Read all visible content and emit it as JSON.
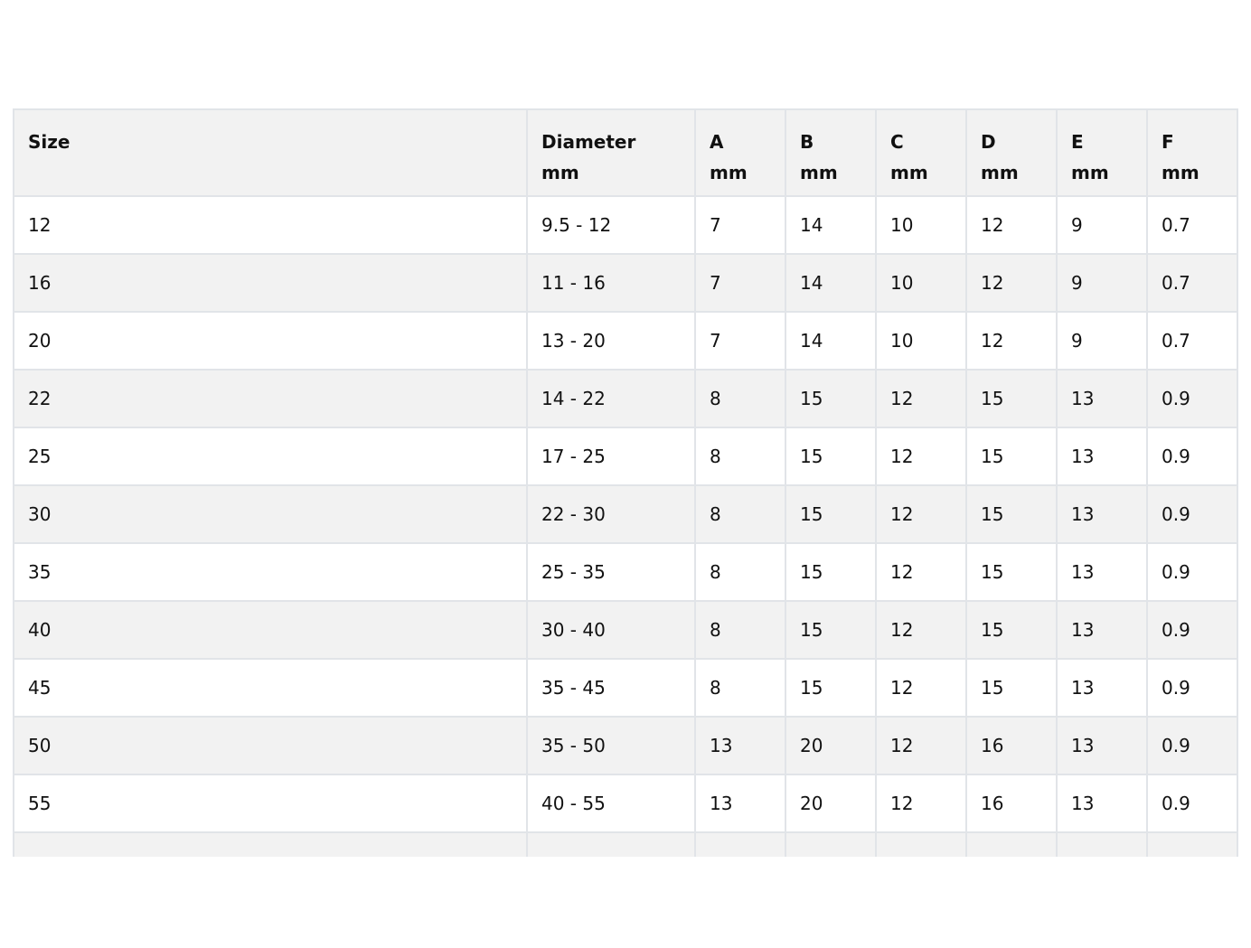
{
  "table": {
    "headers": [
      {
        "line1": "Size",
        "line2": ""
      },
      {
        "line1": "Diameter",
        "line2": "mm"
      },
      {
        "line1": "A",
        "line2": "mm"
      },
      {
        "line1": "B",
        "line2": "mm"
      },
      {
        "line1": "C",
        "line2": "mm"
      },
      {
        "line1": "D",
        "line2": "mm"
      },
      {
        "line1": "E",
        "line2": "mm"
      },
      {
        "line1": "F",
        "line2": "mm"
      }
    ],
    "rows": [
      [
        "12",
        "9.5 - 12",
        "7",
        "14",
        "10",
        "12",
        "9",
        "0.7"
      ],
      [
        "16",
        "11 - 16",
        "7",
        "14",
        "10",
        "12",
        "9",
        "0.7"
      ],
      [
        "20",
        "13 - 20",
        "7",
        "14",
        "10",
        "12",
        "9",
        "0.7"
      ],
      [
        "22",
        "14 - 22",
        "8",
        "15",
        "12",
        "15",
        "13",
        "0.9"
      ],
      [
        "25",
        "17 - 25",
        "8",
        "15",
        "12",
        "15",
        "13",
        "0.9"
      ],
      [
        "30",
        "22 - 30",
        "8",
        "15",
        "12",
        "15",
        "13",
        "0.9"
      ],
      [
        "35",
        "25 - 35",
        "8",
        "15",
        "12",
        "15",
        "13",
        "0.9"
      ],
      [
        "40",
        "30 - 40",
        "8",
        "15",
        "12",
        "15",
        "13",
        "0.9"
      ],
      [
        "45",
        "35 - 45",
        "8",
        "15",
        "12",
        "15",
        "13",
        "0.9"
      ],
      [
        "50",
        "35 - 50",
        "13",
        "20",
        "12",
        "16",
        "13",
        "0.9"
      ],
      [
        "55",
        "40 - 55",
        "13",
        "20",
        "12",
        "16",
        "13",
        "0.9"
      ]
    ]
  }
}
